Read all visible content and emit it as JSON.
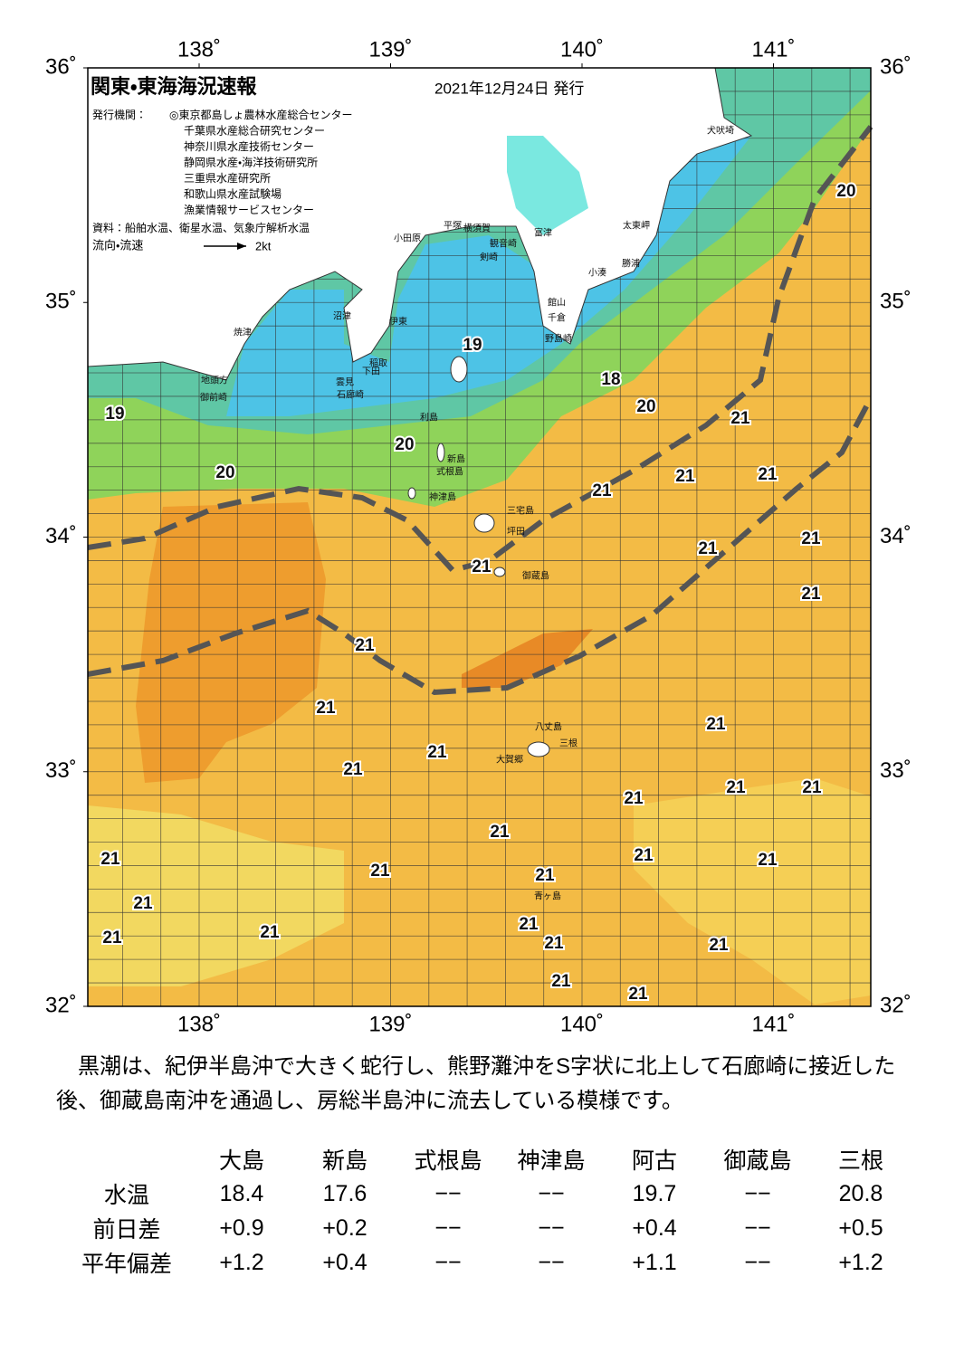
{
  "header": {
    "title": "関東・東海海況速報",
    "date": "2021年12月24日 発行",
    "issuer_label": "発行機関：",
    "issuers": [
      "◎東京都島しょ農林水産総合センター",
      "千葉県水産総合研究センター",
      "神奈川県水産技術センター",
      "静岡県水産・海洋技術研究所",
      "三重県水産研究所",
      "和歌山県水産試験場",
      "漁業情報サービスセンター"
    ],
    "source": "資料：船舶水温、衛星水温、気象庁解析水温",
    "legend_label": "流向・流速",
    "legend_speed": "2kt"
  },
  "map": {
    "lon_ticks": [
      {
        "value": 138,
        "label": "138˚"
      },
      {
        "value": 139,
        "label": "139˚"
      },
      {
        "value": 140,
        "label": "140˚"
      },
      {
        "value": 141,
        "label": "141˚"
      }
    ],
    "lat_ticks": [
      {
        "value": 36,
        "label": "36˚"
      },
      {
        "value": 35,
        "label": "35˚"
      },
      {
        "value": 34,
        "label": "34˚"
      },
      {
        "value": 33,
        "label": "33˚"
      },
      {
        "value": 32,
        "label": "32˚"
      }
    ],
    "temperature_labels": [
      "20",
      "19",
      "18",
      "20",
      "21",
      "19",
      "20",
      "20",
      "21",
      "21",
      "21",
      "21",
      "21",
      "21",
      "21",
      "21",
      "21",
      "21",
      "21",
      "21",
      "21",
      "21",
      "21",
      "21",
      "21",
      "21",
      "21",
      "21",
      "21",
      "21",
      "21",
      "21",
      "21",
      "21",
      "21",
      "21",
      "21"
    ],
    "place_names": [
      "犬吠埼",
      "太東岬",
      "勝浦",
      "小湊",
      "富津",
      "横須賀",
      "観音崎",
      "平塚",
      "小田原",
      "剣崎",
      "館山",
      "千倉",
      "野島崎",
      "沼津",
      "伊東",
      "焼津",
      "稲取",
      "下田",
      "地頭方",
      "御前崎",
      "雲見",
      "石廊崎",
      "利島",
      "新島",
      "式根島",
      "神津島",
      "三宅島",
      "坪田",
      "御蔵島",
      "八丈島",
      "三根",
      "大賀郷",
      "青ヶ島"
    ]
  },
  "summary": "黒潮は、紀伊半島沖で大きく蛇行し、熊野灘沖をS字状に北上して石廊崎に接近した後、御蔵島南沖を通過し、房総半島沖に流去している模様です。",
  "table": {
    "columns": [
      "大島",
      "新島",
      "式根島",
      "神津島",
      "阿古",
      "御蔵島",
      "三根"
    ],
    "rows": [
      {
        "label": "水温",
        "values": [
          "18.4",
          "17.6",
          "−−",
          "−−",
          "19.7",
          "−−",
          "20.8"
        ]
      },
      {
        "label": "前日差",
        "values": [
          "+0.9",
          "+0.2",
          "−−",
          "−−",
          "+0.4",
          "−−",
          "+0.5"
        ]
      },
      {
        "label": "平年偏差",
        "values": [
          "+1.2",
          "+0.4",
          "−−",
          "−−",
          "+1.1",
          "−−",
          "+1.2"
        ]
      }
    ]
  }
}
